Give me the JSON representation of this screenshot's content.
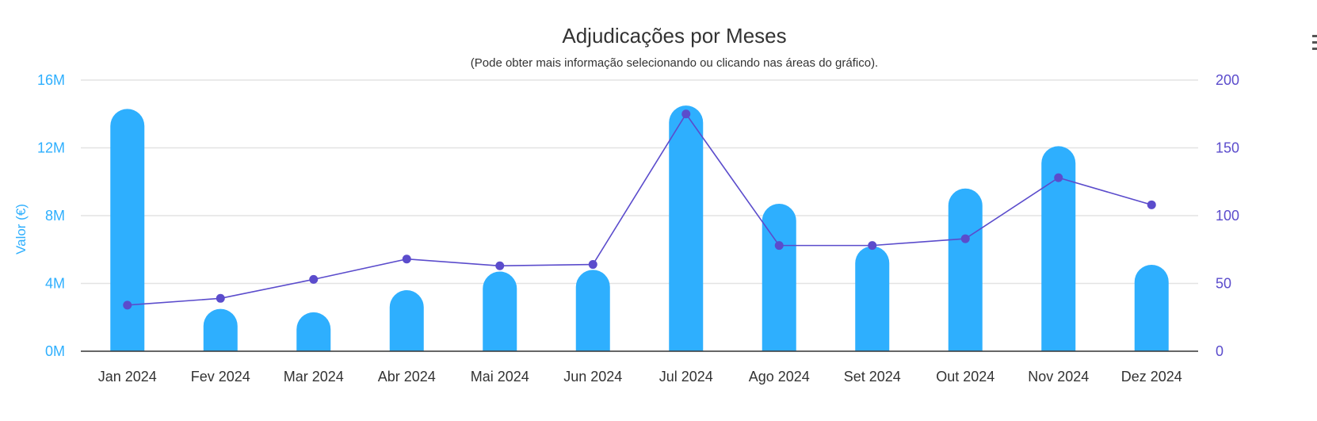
{
  "chart_data": {
    "type": "bar",
    "title": "Adjudicações por Meses",
    "subtitle": "(Pode obter mais informação selecionando ou clicando nas áreas do gráfico).",
    "ylabel": "Valor (€)",
    "y2label": "",
    "categories": [
      "Jan 2024",
      "Fev 2024",
      "Mar 2024",
      "Abr 2024",
      "Mai 2024",
      "Jun 2024",
      "Jul 2024",
      "Ago 2024",
      "Set 2024",
      "Out 2024",
      "Nov 2024",
      "Dez 2024"
    ],
    "ylim": [
      0,
      16000000
    ],
    "y2lim": [
      0,
      200
    ],
    "yticks": [
      "0M",
      "4M",
      "8M",
      "12M",
      "16M"
    ],
    "y2ticks": [
      "0",
      "50",
      "100",
      "150",
      "200"
    ],
    "series": [
      {
        "type": "bar",
        "axis": "left",
        "color": "#2eaffe",
        "values": [
          14300000,
          2500000,
          2300000,
          3600000,
          4700000,
          4800000,
          14500000,
          8700000,
          6200000,
          9600000,
          12100000,
          5100000
        ]
      },
      {
        "type": "line",
        "axis": "right",
        "color": "#5b4ccc",
        "values": [
          34,
          39,
          53,
          68,
          63,
          64,
          175,
          78,
          78,
          83,
          128,
          108
        ]
      }
    ],
    "grid": true,
    "legend": "none"
  },
  "colors": {
    "left_axis": "#2eaffe",
    "right_axis": "#5b4ccc",
    "grid": "#e3e3e3",
    "baseline": "#333333"
  },
  "icons": {
    "menu": "hamburger-menu-icon"
  }
}
